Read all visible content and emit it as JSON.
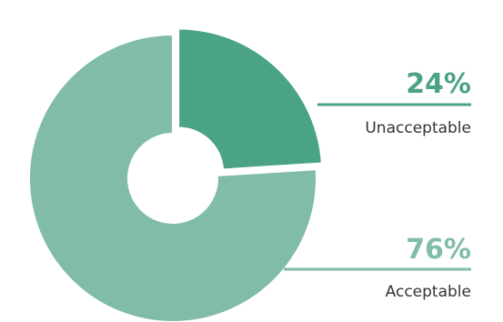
{
  "chart_data": {
    "type": "pie",
    "style": "exploded donut",
    "slices": [
      {
        "label": "Unacceptable",
        "value": 24,
        "value_label": "24%",
        "color": "#4aa384",
        "exploded": true
      },
      {
        "label": "Acceptable",
        "value": 76,
        "value_label": "76%",
        "color": "#80bca8",
        "exploded": false
      }
    ],
    "legend": "right, callout lines"
  }
}
